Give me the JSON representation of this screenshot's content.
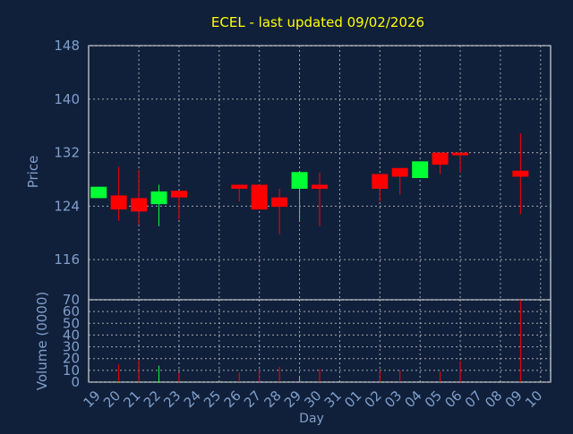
{
  "chart_data": [
    {
      "type": "candlestick",
      "title": "ECEL - last updated 09/02/2026",
      "ylabel": "Price",
      "ylim": [
        110,
        148
      ],
      "yticks": [
        116,
        124,
        132,
        140,
        148
      ],
      "grid": true,
      "colors": {
        "up": "#00ff33",
        "down": "#ff0000",
        "title": "#ffff00",
        "axis_text": "#7f9fcc",
        "background": "#11203a"
      },
      "candles": [
        {
          "day": "19",
          "open": 125.2,
          "close": 126.9,
          "low": 125.2,
          "high": 126.9
        },
        {
          "day": "20",
          "open": 125.6,
          "close": 123.5,
          "low": 121.8,
          "high": 129.9
        },
        {
          "day": "21",
          "open": 125.2,
          "close": 123.2,
          "low": 121.2,
          "high": 129.4
        },
        {
          "day": "22",
          "open": 124.3,
          "close": 126.2,
          "low": 121.0,
          "high": 127.2
        },
        {
          "day": "23",
          "open": 126.3,
          "close": 125.3,
          "low": 122.0,
          "high": 126.3
        },
        {
          "day": "26",
          "open": 127.2,
          "close": 126.6,
          "low": 124.7,
          "high": 127.2
        },
        {
          "day": "27",
          "open": 127.2,
          "close": 123.5,
          "low": 123.5,
          "high": 127.2
        },
        {
          "day": "28",
          "open": 125.3,
          "close": 123.9,
          "low": 119.8,
          "high": 126.6
        },
        {
          "day": "29",
          "open": 126.6,
          "close": 129.1,
          "low": 121.8,
          "high": 129.1
        },
        {
          "day": "30",
          "open": 127.2,
          "close": 126.6,
          "low": 121.0,
          "high": 129.0
        },
        {
          "day": "02",
          "open": 128.8,
          "close": 126.6,
          "low": 124.7,
          "high": 128.8
        },
        {
          "day": "03",
          "open": 129.7,
          "close": 128.4,
          "low": 125.7,
          "high": 129.7
        },
        {
          "day": "04",
          "open": 128.2,
          "close": 130.7,
          "low": 128.2,
          "high": 130.7
        },
        {
          "day": "05",
          "open": 132.0,
          "close": 130.2,
          "low": 128.8,
          "high": 132.0
        },
        {
          "day": "06",
          "open": 132.0,
          "close": 131.6,
          "low": 129.0,
          "high": 132.0
        },
        {
          "day": "09",
          "open": 129.3,
          "close": 128.4,
          "low": 122.8,
          "high": 134.9
        }
      ]
    },
    {
      "type": "bar",
      "ylabel": "Volume (0000)",
      "xlabel": "Day",
      "ylim": [
        0,
        70
      ],
      "yticks": [
        0,
        10,
        20,
        30,
        40,
        50,
        60,
        70
      ],
      "categories": [
        "19",
        "20",
        "21",
        "22",
        "23",
        "24",
        "25",
        "26",
        "27",
        "28",
        "29",
        "30",
        "31",
        "01",
        "02",
        "03",
        "04",
        "05",
        "06",
        "07",
        "08",
        "09",
        "10"
      ],
      "values": [
        0,
        15,
        19,
        14,
        8,
        0,
        0,
        8,
        11,
        13,
        4,
        11,
        0,
        0,
        10,
        10,
        0,
        9,
        18,
        0,
        0,
        70,
        0
      ],
      "bar_colors": [
        "#ff0000",
        "#ff0000",
        "#ff0000",
        "#00ff33",
        "#ff0000",
        "#ff0000",
        "#ff0000",
        "#ff0000",
        "#ff0000",
        "#ff0000",
        "#00ff33",
        "#ff0000",
        "#ff0000",
        "#ff0000",
        "#ff0000",
        "#ff0000",
        "#00ff33",
        "#ff0000",
        "#ff0000",
        "#ff0000",
        "#ff0000",
        "#ff0000",
        "#ff0000"
      ]
    }
  ]
}
